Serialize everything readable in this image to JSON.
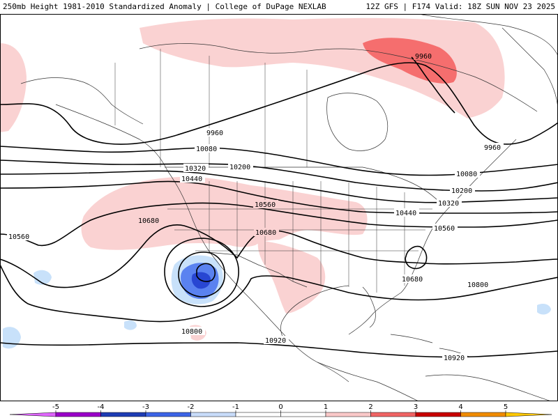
{
  "header": {
    "left_title": "250mb Height 1981-2010 Standardized Anomaly | College of DuPage NEXLAB",
    "right_title": "12Z GFS | F174 Valid: 18Z SUN NOV 23 2025"
  },
  "contour_labels": [
    {
      "id": "9960-a",
      "text": "9960"
    },
    {
      "id": "9960-b",
      "text": "9960"
    },
    {
      "id": "9960-c",
      "text": "9960"
    },
    {
      "id": "10080-a",
      "text": "10080"
    },
    {
      "id": "10080-b",
      "text": "10080"
    },
    {
      "id": "10200-a",
      "text": "10200"
    },
    {
      "id": "10200-b",
      "text": "10200"
    },
    {
      "id": "10320-a",
      "text": "10320"
    },
    {
      "id": "10320-b",
      "text": "10320"
    },
    {
      "id": "10440-a",
      "text": "10440"
    },
    {
      "id": "10440-b",
      "text": "10440"
    },
    {
      "id": "10560-a",
      "text": "10560"
    },
    {
      "id": "10560-b",
      "text": "10560"
    },
    {
      "id": "10560-c",
      "text": "10560"
    },
    {
      "id": "10680-a",
      "text": "10680"
    },
    {
      "id": "10680-b",
      "text": "10680"
    },
    {
      "id": "10680-c",
      "text": "10680"
    },
    {
      "id": "10800-a",
      "text": "10800"
    },
    {
      "id": "10800-b",
      "text": "10800"
    },
    {
      "id": "10920-a",
      "text": "10920"
    },
    {
      "id": "10920-b",
      "text": "10920"
    }
  ],
  "colorbar": {
    "ticks": [
      "-5",
      "-4",
      "-3",
      "-2",
      "-1",
      "0",
      "1",
      "2",
      "3",
      "4",
      "5"
    ],
    "colors": [
      "#e066ff",
      "#9a00c8",
      "#1e3cb4",
      "#3c64e6",
      "#c8dcfa",
      "#ffffff",
      "#ffffff",
      "#fac8c8",
      "#f06464",
      "#c80000",
      "#f08c00",
      "#ffc800"
    ]
  },
  "anomaly_colors": {
    "pos1": "#fad2d2",
    "pos2": "#f56e6e",
    "neg1": "#c8e1fa",
    "neg2": "#5a82f0",
    "neg3": "#2846d2"
  }
}
